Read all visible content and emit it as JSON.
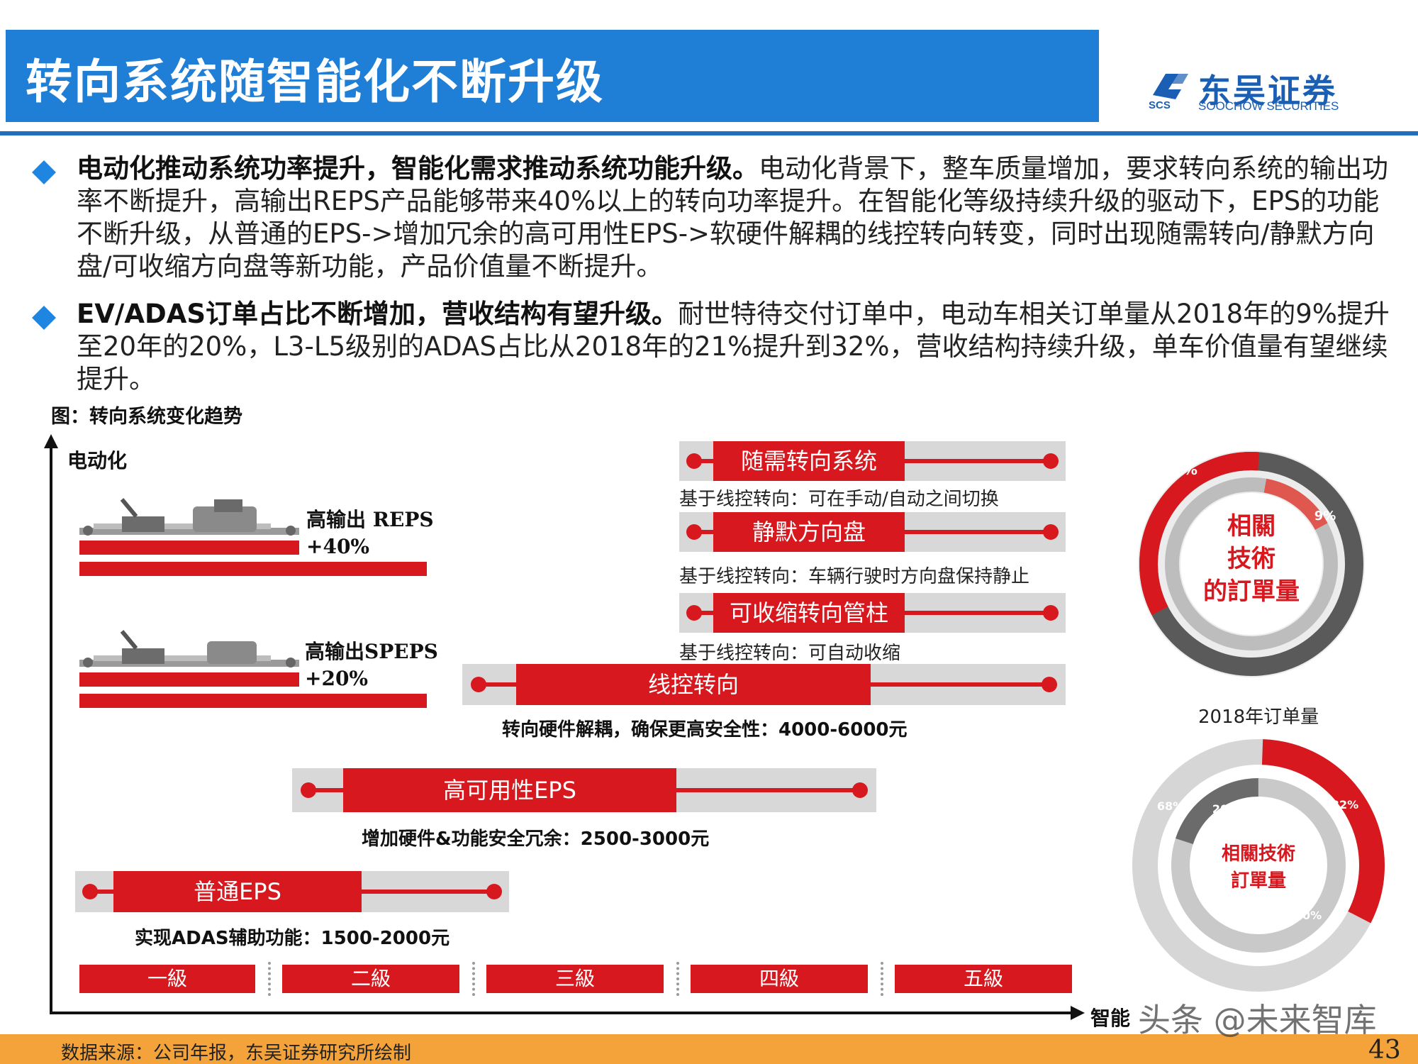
{
  "header": {
    "title": "转向系统随智能化不断升级",
    "logo_cn": "东吴证券",
    "logo_en": "SOOCHOW SECURITIES",
    "logo_abbr": "SCS",
    "brand_color": "#1f7fd6"
  },
  "bullets": [
    {
      "bold": "电动化推动系统功率提升，智能化需求推动系统功能升级。",
      "text": "电动化背景下，整车质量增加，要求转向系统的输出功率不断提升，高输出REPS产品能够带来40%以上的转向功率提升。在智能化等级持续升级的驱动下，EPS的功能不断升级，从普通的EPS->增加冗余的高可用性EPS->软硬件解耦的线控转向转变，同时出现随需转向/静默方向盘/可收缩方向盘等新功能，产品价值量不断提升。"
    },
    {
      "bold": "EV/ADAS订单占比不断增加，营收结构有望升级。",
      "text": "耐世特待交付订单中，电动车相关订单量从2018年的9%提升至20年的20%，L3-L5级别的ADAS占比从2018年的21%提升到32%，营收结构持续升级，单车价值量有望继续提升。"
    }
  ],
  "figure": {
    "caption": "图：转向系统变化趋势",
    "axis_y_label": "电动化",
    "axis_x_label": "智能",
    "products": [
      {
        "name": "高输出 REPS",
        "gain": "+40%"
      },
      {
        "name": "高输出SPEPS",
        "gain": "+20%"
      }
    ],
    "strips": [
      {
        "label": "随需转向系统",
        "note": "基于线控转向：可在手动/自动之间切换"
      },
      {
        "label": "静默方向盘",
        "note": "基于线控转向：车辆行驶时方向盘保持静止"
      },
      {
        "label": "可收缩转向管柱",
        "note": "基于线控转向：可自动收缩"
      },
      {
        "label": "线控转向",
        "note": "转向硬件解耦，确保更高安全性：4000-6000元"
      },
      {
        "label": "高可用性EPS",
        "note": "增加硬件&功能安全冗余：2500-3000元"
      },
      {
        "label": "普通EPS",
        "note": "实现ADAS辅助功能：1500-2000元"
      }
    ],
    "levels": [
      "一級",
      "二級",
      "三級",
      "四級",
      "五級"
    ],
    "donut_2018": {
      "center_text": [
        "相關",
        "技術",
        "的訂單量"
      ],
      "label_outer": "21%",
      "label_inner": "9%",
      "outer_value": 21,
      "inner_value": 9,
      "caption": "2018年订单量"
    },
    "donut_2020": {
      "center_text": [
        "相關技術",
        "訂單量"
      ],
      "label_outer_red": "32%",
      "label_outer_gray": "68%",
      "label_inner_dark": "20%",
      "label_inner_gray": "80%",
      "outer_value": 32,
      "inner_value": 20
    },
    "accent_red": "#d7191f"
  },
  "footer": {
    "source": "数据来源：公司年报，东吴证券研究所绘制",
    "page": "43",
    "watermark": "头条 @未来智库"
  }
}
